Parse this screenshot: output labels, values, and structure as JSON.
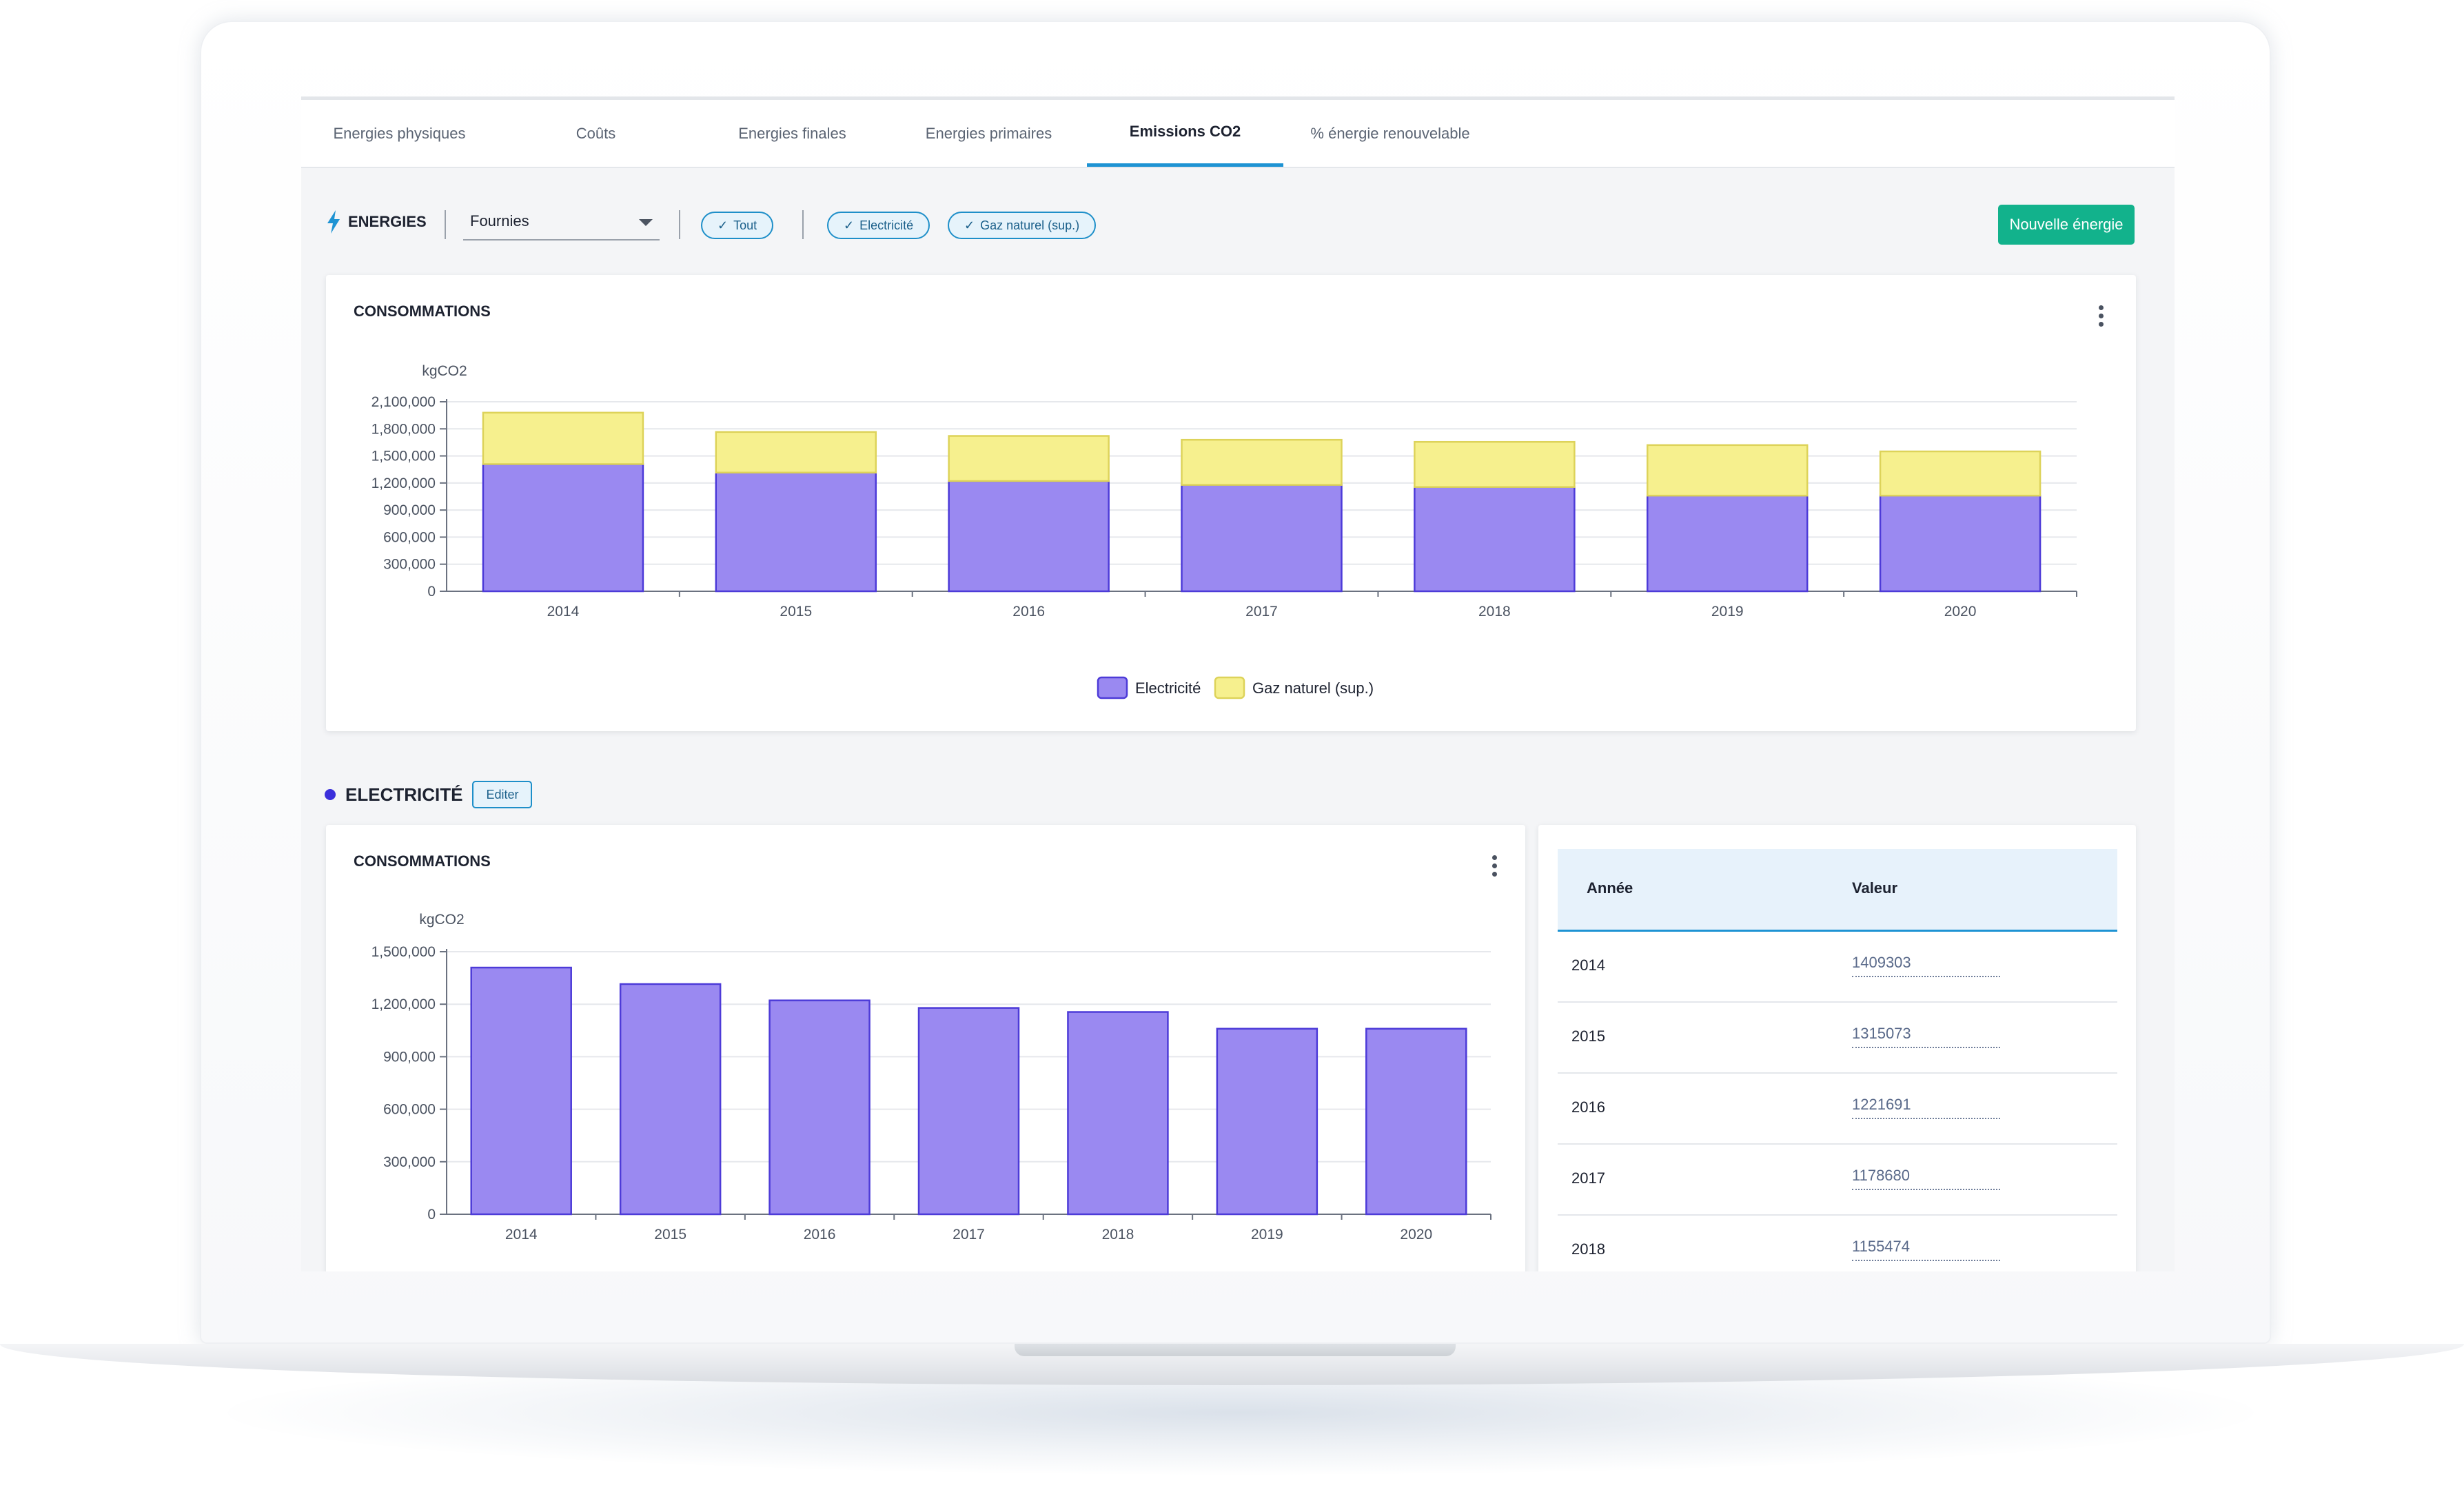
{
  "tabs": [
    {
      "label": "Energies physiques",
      "active": false
    },
    {
      "label": "Coûts",
      "active": false
    },
    {
      "label": "Energies finales",
      "active": false
    },
    {
      "label": "Energies primaires",
      "active": false
    },
    {
      "label": "Emissions CO2",
      "active": true
    },
    {
      "label": "% énergie renouvelable",
      "active": false
    }
  ],
  "filters": {
    "section_label": "ENERGIES",
    "select_value": "Fournies",
    "chips": [
      "Tout",
      "Electricité",
      "Gaz naturel (sup.)"
    ],
    "new_button": "Nouvelle énergie"
  },
  "colors": {
    "accent": "#1e93d3",
    "green_button": "#12b28c",
    "electricite": "#9a89f1",
    "electricite_stroke": "#4d3bd8",
    "gaz": "#f6f08e",
    "gaz_stroke": "#ddd35a"
  },
  "card_top": {
    "title": "CONSOMMATIONS"
  },
  "section": {
    "title": "ELECTRICITÉ",
    "edit_button": "Editer"
  },
  "card_bottom": {
    "title": "CONSOMMATIONS"
  },
  "table": {
    "headers": [
      "Année",
      "Valeur"
    ],
    "rows": [
      {
        "year": "2014",
        "value": "1409303"
      },
      {
        "year": "2015",
        "value": "1315073"
      },
      {
        "year": "2016",
        "value": "1221691"
      },
      {
        "year": "2017",
        "value": "1178680"
      },
      {
        "year": "2018",
        "value": "1155474"
      }
    ]
  },
  "chart_data": [
    {
      "type": "bar",
      "stacked": true,
      "ylabel": "kgCO2",
      "categories": [
        "2014",
        "2015",
        "2016",
        "2017",
        "2018",
        "2019",
        "2020"
      ],
      "yticks": [
        "0",
        "300,000",
        "600,000",
        "900,000",
        "1,200,000",
        "1,500,000",
        "1,800,000",
        "2,100,000"
      ],
      "ylim": [
        0,
        2100000
      ],
      "series": [
        {
          "name": "Electricité",
          "values": [
            1409303,
            1315073,
            1221691,
            1178680,
            1155474,
            1060000,
            1060000
          ]
        },
        {
          "name": "Gaz naturel (sup.)",
          "values": [
            570000,
            450000,
            500000,
            500000,
            500000,
            560000,
            490000
          ]
        }
      ],
      "legend": "bottom-center",
      "grid": true
    },
    {
      "type": "bar",
      "ylabel": "kgCO2",
      "categories": [
        "2014",
        "2015",
        "2016",
        "2017",
        "2018",
        "2019",
        "2020"
      ],
      "yticks": [
        "0",
        "300,000",
        "600,000",
        "900,000",
        "1,200,000",
        "1,500,000"
      ],
      "ylim": [
        0,
        1500000
      ],
      "series": [
        {
          "name": "Electricité",
          "values": [
            1409303,
            1315073,
            1221691,
            1178680,
            1155474,
            1060000,
            1060000
          ]
        }
      ],
      "legend": "none",
      "grid": true
    }
  ]
}
